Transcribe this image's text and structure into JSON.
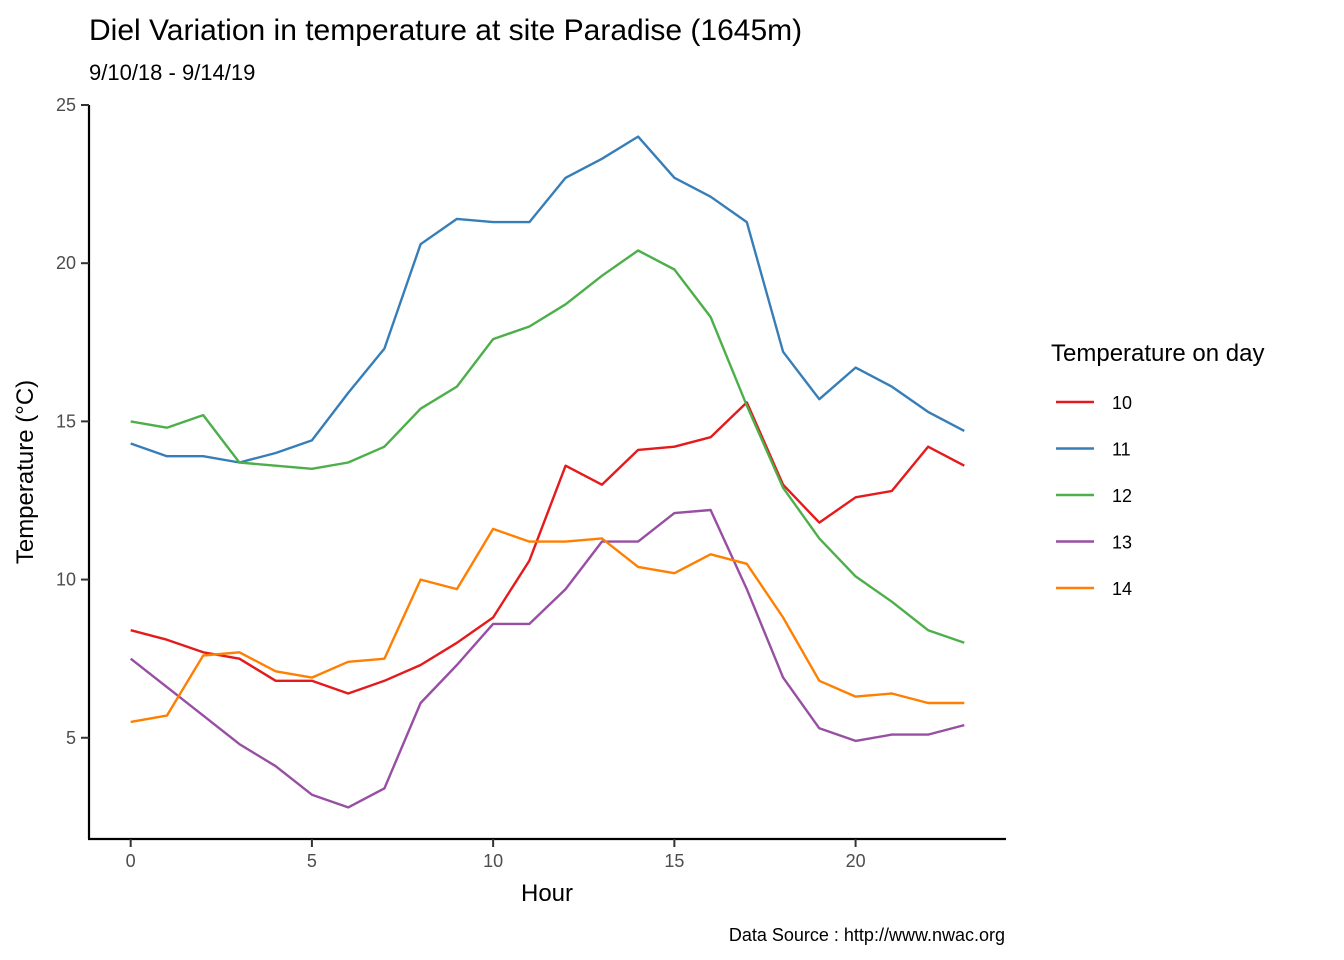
{
  "chart_data": {
    "type": "line",
    "title": "Diel Variation in temperature at site Paradise (1645m)",
    "subtitle": "9/10/18 - 9/14/19",
    "xlabel": "Hour",
    "ylabel": "Temperature (°C)",
    "caption": "Data Source : http://www.nwac.org",
    "xlim": [
      -1.15,
      24.15
    ],
    "ylim": [
      1.8,
      25
    ],
    "xticks": [
      0,
      5,
      10,
      15,
      20
    ],
    "yticks": [
      5,
      10,
      15,
      20,
      25
    ],
    "grid": false,
    "legend": {
      "title": "Temperature on day",
      "position": "right"
    },
    "x": [
      0,
      1,
      2,
      3,
      4,
      5,
      6,
      7,
      8,
      9,
      10,
      11,
      12,
      13,
      14,
      15,
      16,
      17,
      18,
      19,
      20,
      21,
      22,
      23
    ],
    "series": [
      {
        "name": "10",
        "color": "#e41a1c",
        "values": [
          8.4,
          8.1,
          7.7,
          7.5,
          6.8,
          6.8,
          6.4,
          6.8,
          7.3,
          8.0,
          8.8,
          10.6,
          13.6,
          13.0,
          14.1,
          14.2,
          14.5,
          15.6,
          13.0,
          11.8,
          12.6,
          12.8,
          14.2,
          13.6
        ]
      },
      {
        "name": "11",
        "color": "#377eb8",
        "values": [
          14.3,
          13.9,
          13.9,
          13.7,
          14.0,
          14.4,
          15.9,
          17.3,
          20.6,
          21.4,
          21.3,
          21.3,
          22.7,
          23.3,
          24.0,
          22.7,
          22.1,
          21.3,
          17.2,
          15.7,
          16.7,
          16.1,
          15.3,
          14.7
        ]
      },
      {
        "name": "12",
        "color": "#4daf4a",
        "values": [
          15.0,
          14.8,
          15.2,
          13.7,
          13.6,
          13.5,
          13.7,
          14.2,
          15.4,
          16.1,
          17.6,
          18.0,
          18.7,
          19.6,
          20.4,
          19.8,
          18.3,
          15.5,
          12.9,
          11.3,
          10.1,
          9.3,
          8.4,
          8.0
        ]
      },
      {
        "name": "13",
        "color": "#984ea3",
        "values": [
          7.5,
          6.6,
          5.7,
          4.8,
          4.1,
          3.2,
          2.8,
          3.4,
          6.1,
          7.3,
          8.6,
          8.6,
          9.7,
          11.2,
          11.2,
          12.1,
          12.2,
          9.7,
          6.9,
          5.3,
          4.9,
          5.1,
          5.1,
          5.4
        ]
      },
      {
        "name": "14",
        "color": "#ff7f00",
        "values": [
          5.5,
          5.7,
          7.6,
          7.7,
          7.1,
          6.9,
          7.4,
          7.5,
          10.0,
          9.7,
          11.6,
          11.2,
          11.2,
          11.3,
          10.4,
          10.2,
          10.8,
          10.5,
          8.8,
          6.8,
          6.3,
          6.4,
          6.1,
          6.1
        ]
      }
    ]
  }
}
